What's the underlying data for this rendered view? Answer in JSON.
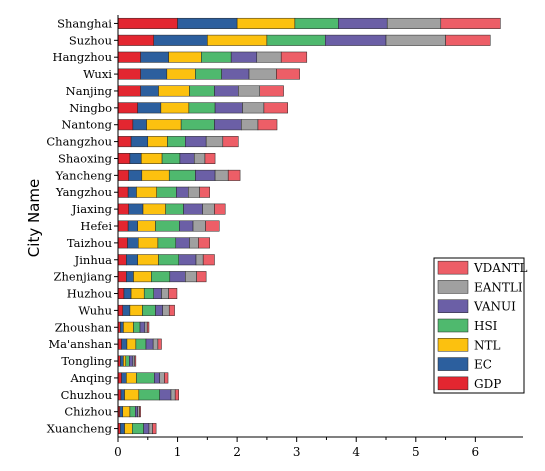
{
  "chart_data": {
    "type": "bar",
    "orientation": "horizontal",
    "stacked": true,
    "ylabel": "City Name",
    "xlabel": "",
    "xlim": [
      0,
      6.8
    ],
    "xticks": [
      "0",
      "1",
      "2",
      "3",
      "4",
      "5",
      "6"
    ],
    "grid": false,
    "legend_position": "bottom-right",
    "categories": [
      "Shanghai",
      "Suzhou",
      "Hangzhou",
      "Wuxi",
      "Nanjing",
      "Ningbo",
      "Nantong",
      "Changzhou",
      "Shaoxing",
      "Yancheng",
      "Yangzhou",
      "Jiaxing",
      "Hefei",
      "Taizhou",
      "Jinhua",
      "Zhenjiang",
      "Huzhou",
      "Wuhu",
      "Zhoushan",
      "Ma'anshan",
      "Tongling",
      "Anqing",
      "Chuzhou",
      "Chizhou",
      "Xuancheng"
    ],
    "series": [
      {
        "name": "GDP",
        "color": "#e32630",
        "values": [
          1.0,
          0.6,
          0.38,
          0.38,
          0.38,
          0.33,
          0.25,
          0.22,
          0.2,
          0.18,
          0.17,
          0.18,
          0.17,
          0.16,
          0.14,
          0.14,
          0.1,
          0.08,
          0.04,
          0.06,
          0.04,
          0.06,
          0.05,
          0.03,
          0.04
        ]
      },
      {
        "name": "EC",
        "color": "#2c5f9e",
        "values": [
          1.0,
          0.9,
          0.47,
          0.44,
          0.3,
          0.39,
          0.23,
          0.28,
          0.19,
          0.22,
          0.14,
          0.24,
          0.16,
          0.18,
          0.19,
          0.12,
          0.12,
          0.12,
          0.05,
          0.09,
          0.05,
          0.08,
          0.06,
          0.05,
          0.07
        ]
      },
      {
        "name": "NTL",
        "color": "#fcc10f",
        "values": [
          0.97,
          1.0,
          0.55,
          0.48,
          0.52,
          0.47,
          0.58,
          0.33,
          0.35,
          0.46,
          0.34,
          0.38,
          0.3,
          0.33,
          0.35,
          0.3,
          0.22,
          0.21,
          0.17,
          0.15,
          0.04,
          0.17,
          0.24,
          0.12,
          0.13
        ]
      },
      {
        "name": "HSI",
        "color": "#4fb96e",
        "values": [
          0.73,
          0.98,
          0.5,
          0.44,
          0.42,
          0.44,
          0.56,
          0.3,
          0.3,
          0.44,
          0.33,
          0.3,
          0.4,
          0.3,
          0.34,
          0.31,
          0.16,
          0.22,
          0.11,
          0.17,
          0.06,
          0.3,
          0.35,
          0.09,
          0.19
        ]
      },
      {
        "name": "VANUI",
        "color": "#6b5fa6",
        "values": [
          0.82,
          1.02,
          0.43,
          0.46,
          0.4,
          0.46,
          0.45,
          0.35,
          0.24,
          0.33,
          0.2,
          0.32,
          0.23,
          0.23,
          0.29,
          0.26,
          0.13,
          0.12,
          0.08,
          0.12,
          0.06,
          0.09,
          0.19,
          0.04,
          0.09
        ]
      },
      {
        "name": "EANTLI",
        "color": "#a0a0a0",
        "values": [
          0.9,
          1.0,
          0.41,
          0.46,
          0.36,
          0.36,
          0.28,
          0.28,
          0.18,
          0.22,
          0.19,
          0.2,
          0.21,
          0.15,
          0.12,
          0.19,
          0.12,
          0.11,
          0.04,
          0.08,
          0.03,
          0.08,
          0.07,
          0.03,
          0.06
        ]
      },
      {
        "name": "VDANTL",
        "color": "#ed5e67",
        "values": [
          1.0,
          0.75,
          0.43,
          0.39,
          0.4,
          0.4,
          0.32,
          0.26,
          0.17,
          0.2,
          0.17,
          0.18,
          0.23,
          0.19,
          0.19,
          0.16,
          0.14,
          0.09,
          0.03,
          0.06,
          0.02,
          0.06,
          0.06,
          0.02,
          0.06
        ]
      }
    ],
    "legend_order": [
      "VDANTL",
      "EANTLI",
      "VANUI",
      "HSI",
      "NTL",
      "EC",
      "GDP"
    ]
  }
}
